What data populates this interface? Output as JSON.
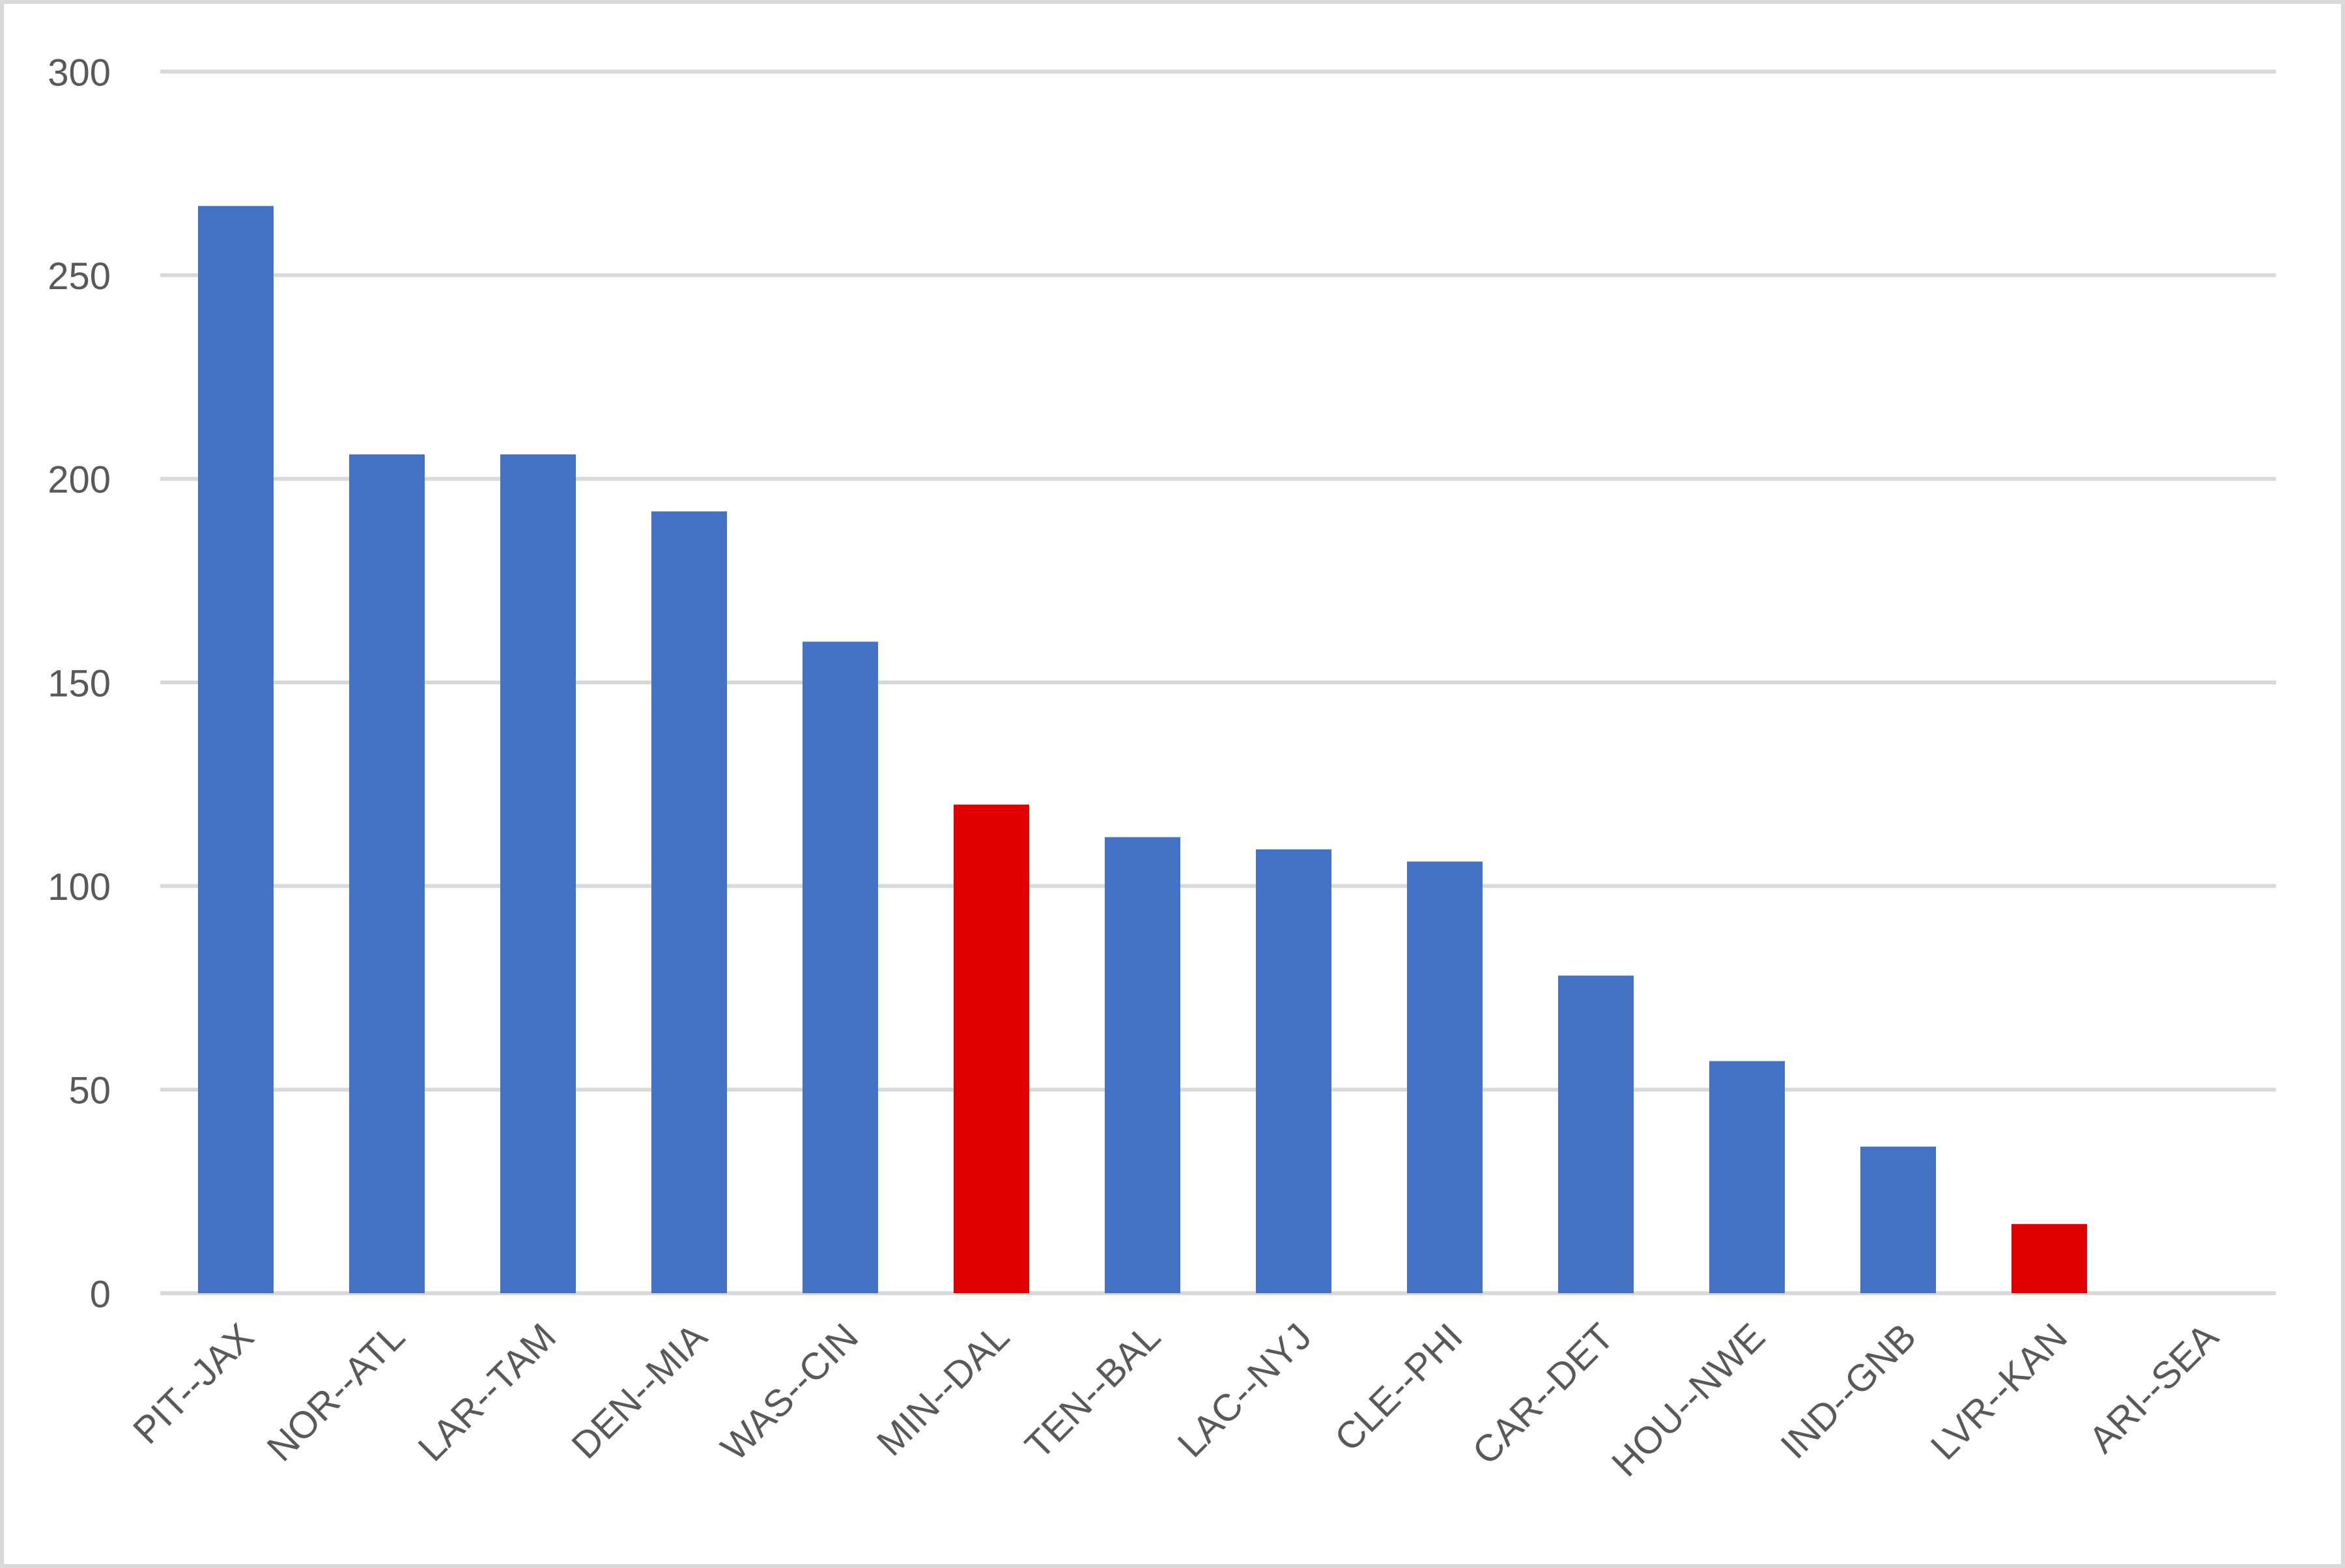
{
  "chart_data": {
    "type": "bar",
    "categories": [
      "PIT--JAX",
      "NOR--ATL",
      "LAR--TAM",
      "DEN--MIA",
      "WAS--CIN",
      "MIN--DAL",
      "TEN--BAL",
      "LAC--NYJ",
      "CLE--PHI",
      "CAR--DET",
      "HOU--NWE",
      "IND--GNB",
      "LVR--KAN",
      "ARI--SEA"
    ],
    "values": [
      267,
      206,
      206,
      192,
      160,
      120,
      112,
      109,
      106,
      78,
      57,
      36,
      17,
      0
    ],
    "colors": [
      "#4472c4",
      "#4472c4",
      "#4472c4",
      "#4472c4",
      "#4472c4",
      "#e00000",
      "#4472c4",
      "#4472c4",
      "#4472c4",
      "#4472c4",
      "#4472c4",
      "#4472c4",
      "#e00000",
      "#4472c4"
    ],
    "ylim": [
      0,
      300
    ],
    "yticks": [
      0,
      50,
      100,
      150,
      200,
      250,
      300
    ],
    "grid": true
  }
}
